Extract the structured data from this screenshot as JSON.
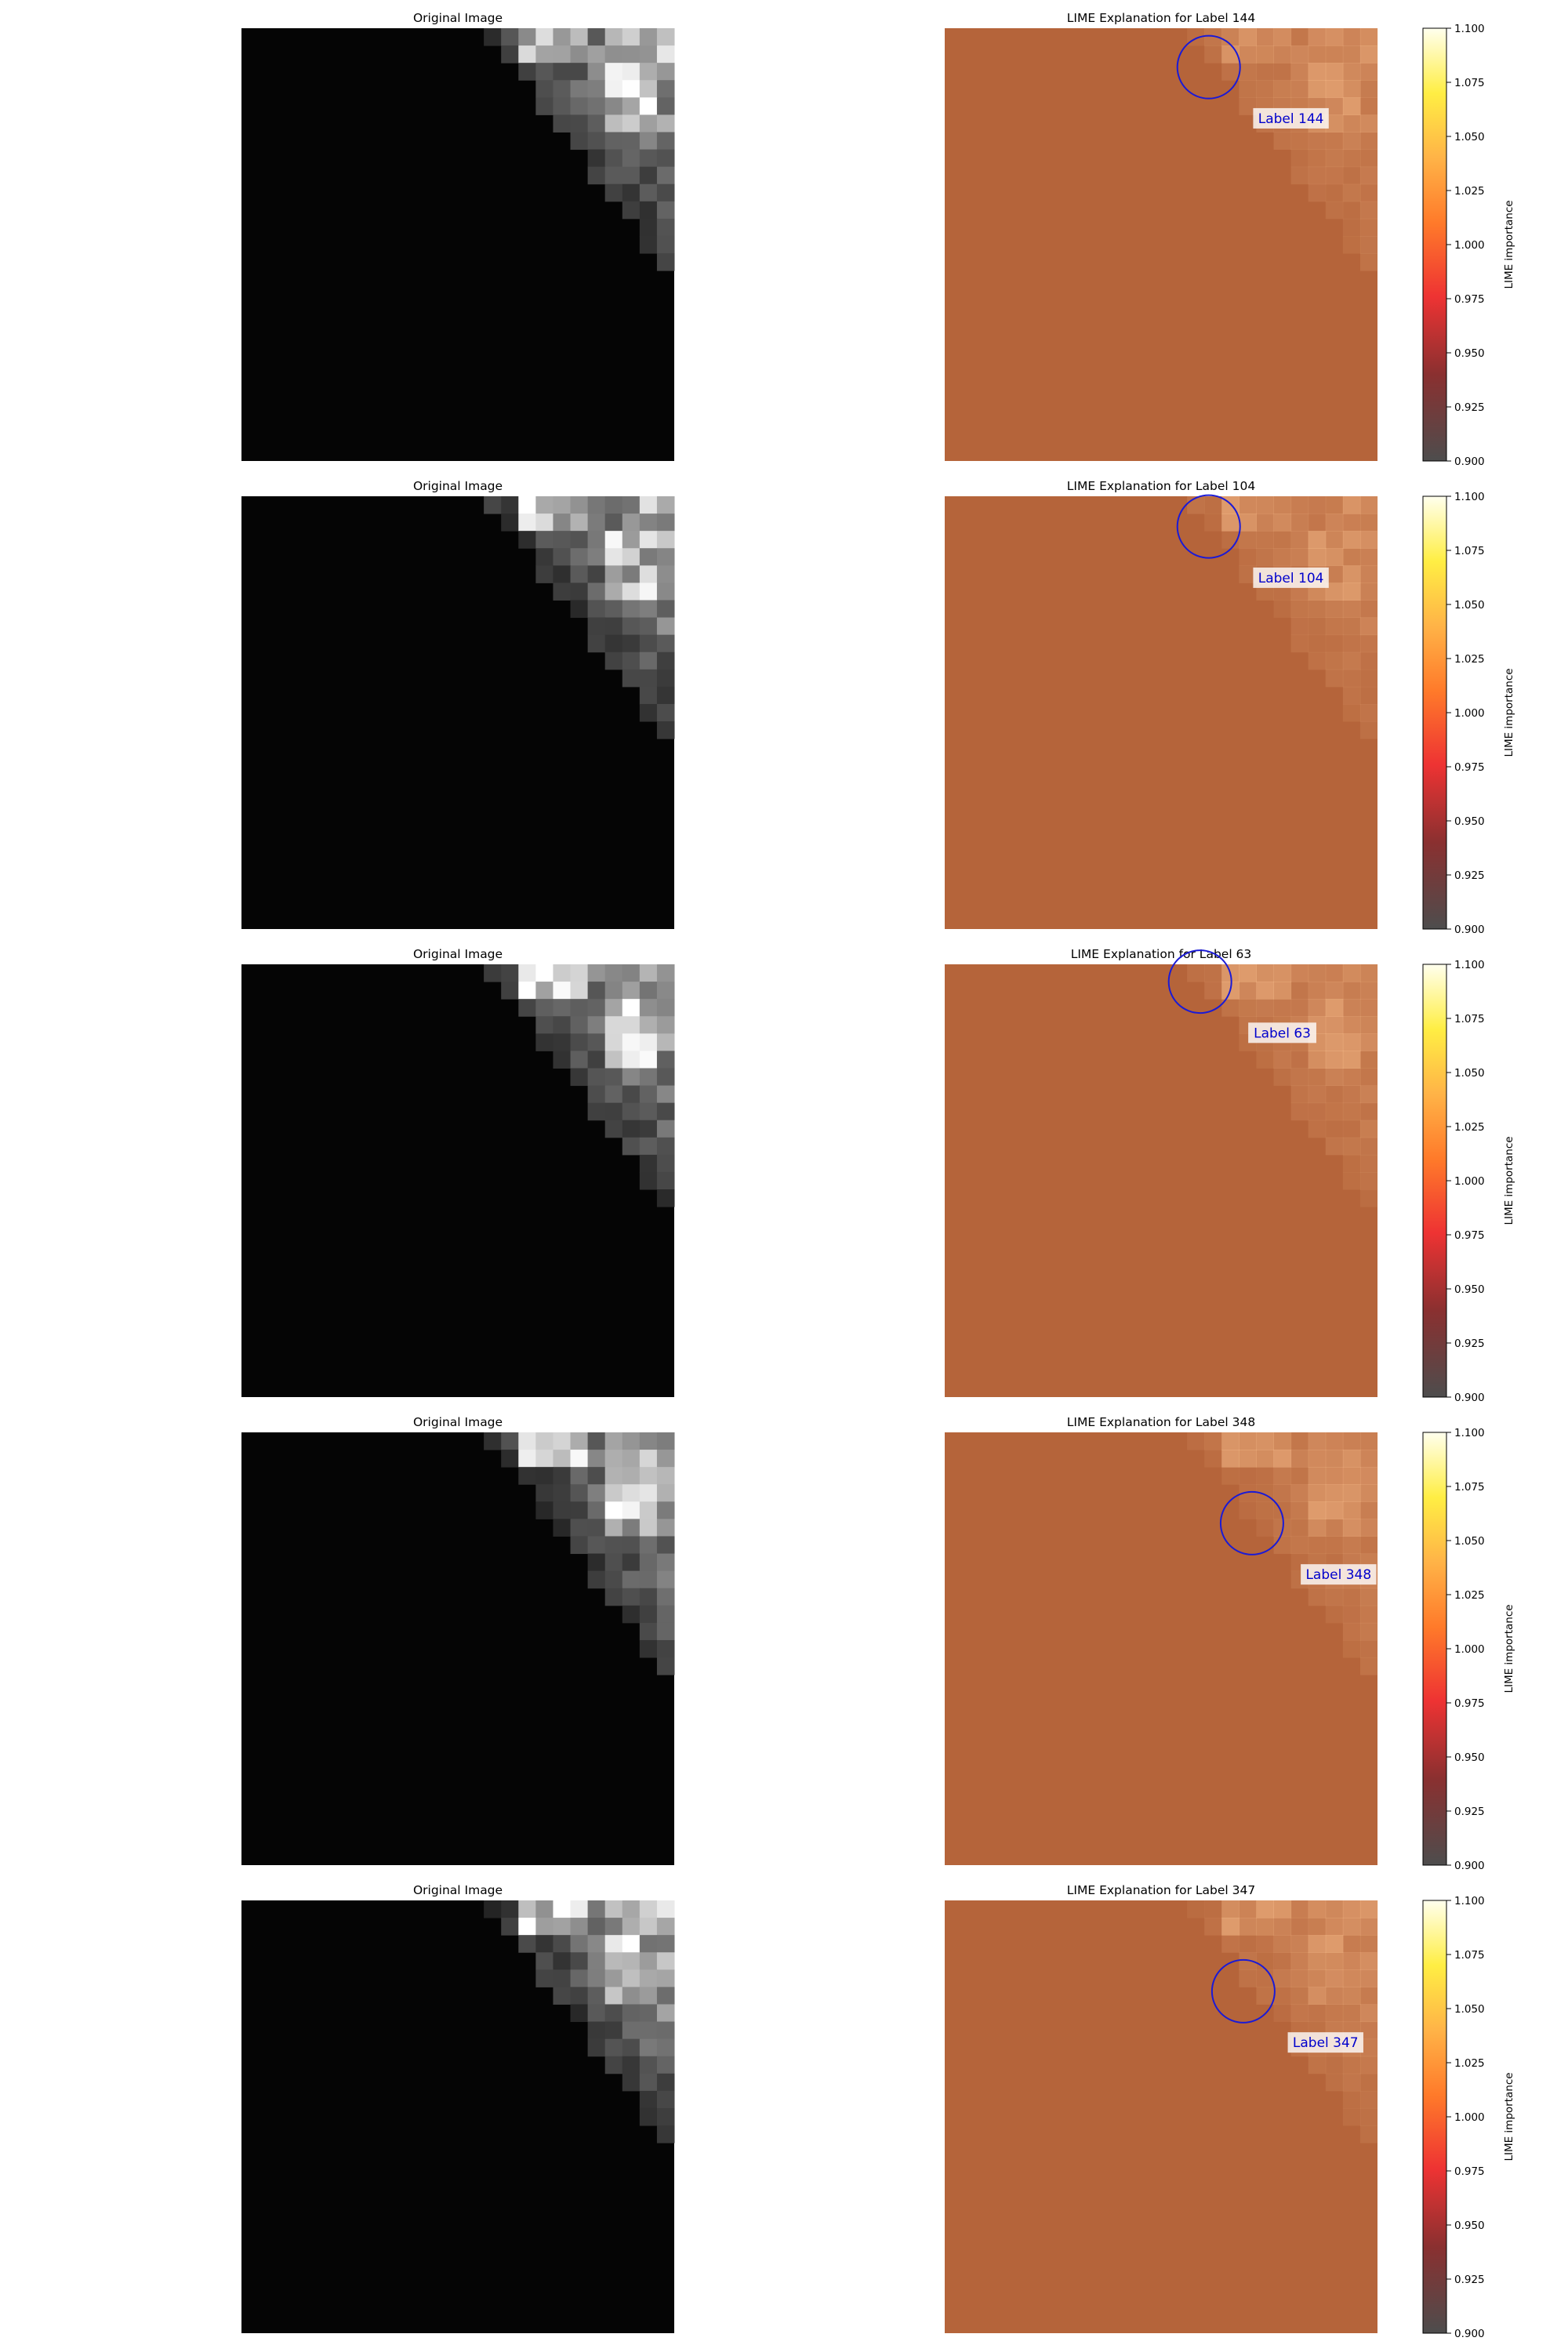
{
  "figure": {
    "rows": [
      {
        "left_title": "Original Image",
        "right_title": "LIME Explanation for Label 144",
        "annotation": "Label 144",
        "colorbar_label": "LIME importance"
      },
      {
        "left_title": "Original Image",
        "right_title": "LIME Explanation for Label 104",
        "annotation": "Label 104",
        "colorbar_label": "LIME importance"
      },
      {
        "left_title": "Original Image",
        "right_title": "LIME Explanation for Label 63",
        "annotation": "Label 63",
        "colorbar_label": "LIME importance"
      },
      {
        "left_title": "Original Image",
        "right_title": "LIME Explanation for Label 348",
        "annotation": "Label 348",
        "colorbar_label": "LIME importance"
      },
      {
        "left_title": "Original Image",
        "right_title": "LIME Explanation for Label 347",
        "annotation": "Label 347",
        "colorbar_label": "LIME importance"
      }
    ]
  },
  "chart_data": {
    "type": "heatmap",
    "colormap": "hot",
    "colorbar_range": [
      0.9,
      1.1
    ],
    "colorbar_ticks": [
      "0.900",
      "0.925",
      "0.950",
      "0.975",
      "1.000",
      "1.025",
      "1.050",
      "1.075",
      "1.100"
    ],
    "colorbar_label": "LIME importance",
    "overlay_color": "#b5643a",
    "annotation_color": "#0000cc",
    "circle_color": "#1a1ad6",
    "panels": [
      {
        "original_title": "Original Image",
        "explanation_title": "LIME Explanation for Label 144",
        "label": 144
      },
      {
        "original_title": "Original Image",
        "explanation_title": "LIME Explanation for Label 104",
        "label": 104
      },
      {
        "original_title": "Original Image",
        "explanation_title": "LIME Explanation for Label 63",
        "label": 63
      },
      {
        "original_title": "Original Image",
        "explanation_title": "LIME Explanation for Label 348",
        "label": 348
      },
      {
        "original_title": "Original Image",
        "explanation_title": "LIME Explanation for Label 347",
        "label": 347
      }
    ]
  }
}
